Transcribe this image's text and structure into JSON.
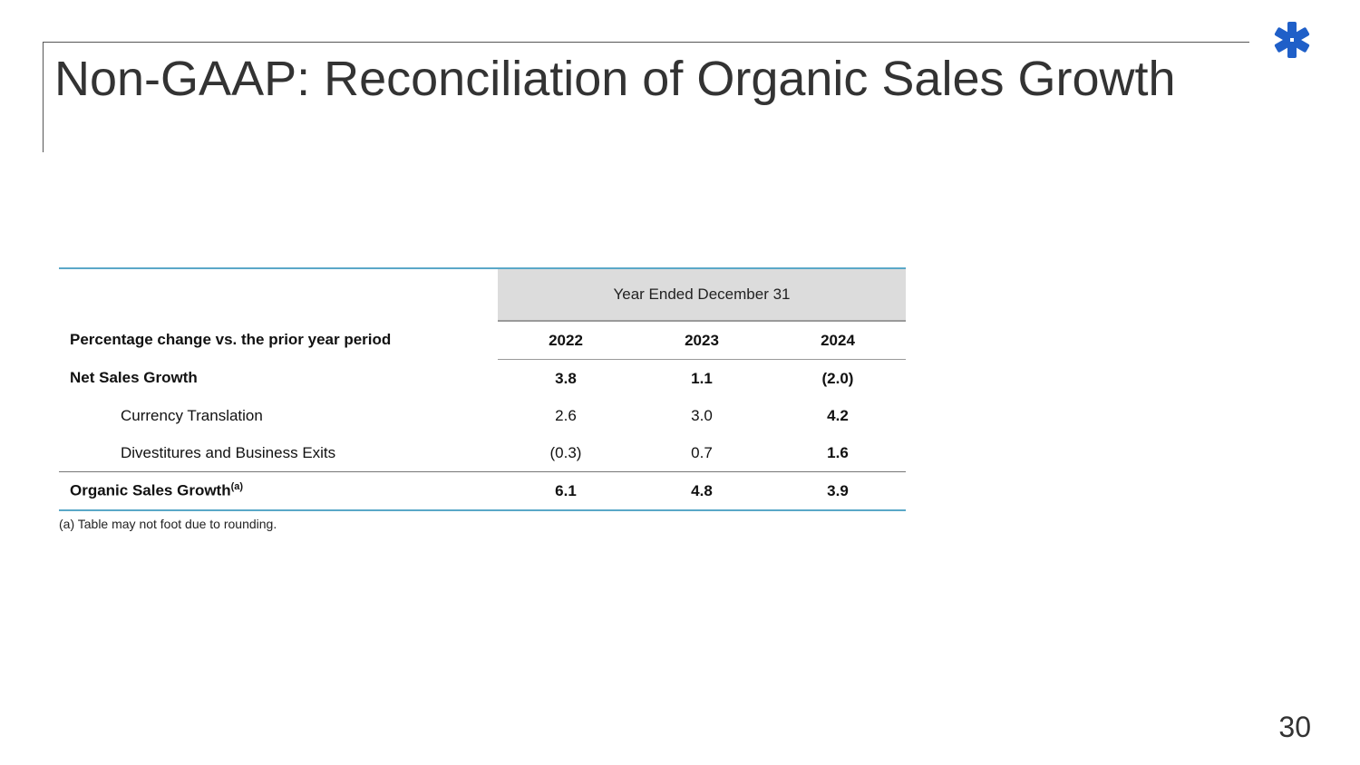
{
  "title": "Non-GAAP: Reconciliation of Organic Sales Growth",
  "logo_icon": "asterisk-logo-icon",
  "colors": {
    "logo": "#1f5fc8",
    "rule_accent": "#5aa8c8",
    "header_fill": "#dcdcdc"
  },
  "table": {
    "period_header": "Year Ended December 31",
    "row_header": "Percentage change vs. the prior year period",
    "years": [
      "2022",
      "2023",
      "2024"
    ],
    "rows": [
      {
        "label": "Net Sales Growth",
        "values": [
          "3.8",
          "1.1",
          "(2.0)"
        ]
      },
      {
        "label": "Currency Translation",
        "values": [
          "2.6",
          "3.0",
          "4.2"
        ]
      },
      {
        "label": "Divestitures and Business Exits",
        "values": [
          "(0.3)",
          "0.7",
          "1.6"
        ]
      },
      {
        "label": "Organic Sales Growth",
        "footnote_marker": "(a)",
        "values": [
          "6.1",
          "4.8",
          "3.9"
        ]
      }
    ]
  },
  "footnote": "(a) Table may not foot due to rounding.",
  "page_number": "30"
}
